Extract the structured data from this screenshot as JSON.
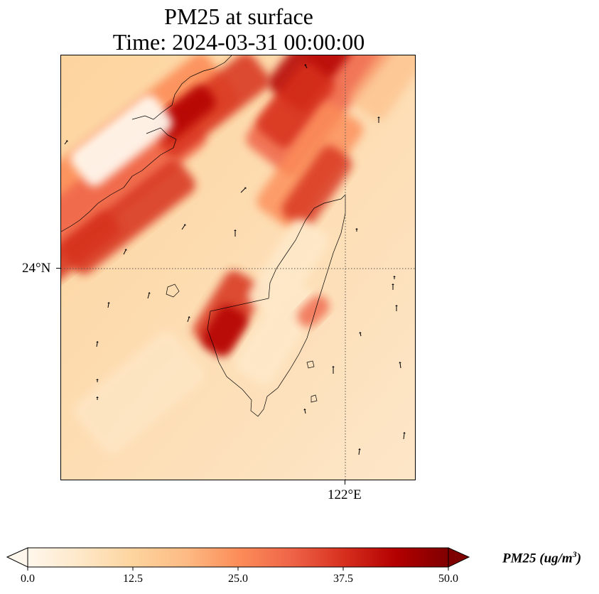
{
  "title": {
    "line1": "PM25 at surface",
    "line2": "Time: 2024-03-31 00:00:00"
  },
  "map": {
    "variable": "PM25",
    "region": "Taiwan Strait / Taiwan",
    "gridlines": {
      "latitude": [
        {
          "value": 24,
          "label": "24°N"
        }
      ],
      "longitude": [
        {
          "value": 122,
          "label": "122°E"
        }
      ],
      "style": "dotted"
    },
    "coastlines": true,
    "wind_vectors": true
  },
  "colorbar": {
    "min": 0.0,
    "max": 50.0,
    "ticks": [
      "0.0",
      "12.5",
      "25.0",
      "37.5",
      "50.0"
    ],
    "label_main": "PM25 (ug/m",
    "label_sup": "3",
    "label_end": ")",
    "extend": "both",
    "colormap": "OrRd",
    "colors": [
      "#fff7ec",
      "#fee8c8",
      "#fdd49e",
      "#fdbb84",
      "#fc8d59",
      "#ef6548",
      "#d7301f",
      "#b30000",
      "#7f0000"
    ]
  }
}
